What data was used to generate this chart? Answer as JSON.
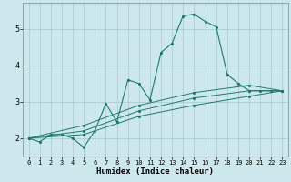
{
  "title": "",
  "xlabel": "Humidex (Indice chaleur)",
  "bg_color": "#cce8ec",
  "grid_color": "#aacdd4",
  "line_color": "#1a7a6e",
  "xlim": [
    -0.5,
    23.5
  ],
  "ylim": [
    1.5,
    5.7
  ],
  "yticks": [
    2,
    3,
    4,
    5
  ],
  "xticks": [
    0,
    1,
    2,
    3,
    4,
    5,
    6,
    7,
    8,
    9,
    10,
    11,
    12,
    13,
    14,
    15,
    16,
    17,
    18,
    19,
    20,
    21,
    22,
    23
  ],
  "series": [
    {
      "x": [
        0,
        1,
        2,
        3,
        4,
        5,
        6,
        7,
        8,
        9,
        10,
        11,
        12,
        13,
        14,
        15,
        16,
        17,
        18,
        19,
        20,
        21,
        22,
        23
      ],
      "y": [
        2.0,
        1.9,
        2.1,
        2.1,
        2.0,
        1.75,
        2.2,
        2.95,
        2.45,
        3.6,
        3.5,
        3.05,
        4.35,
        4.6,
        5.35,
        5.4,
        5.2,
        5.05,
        3.75,
        3.5,
        3.3,
        3.3,
        3.3,
        3.3
      ]
    },
    {
      "x": [
        0,
        23
      ],
      "y": [
        2.0,
        3.3
      ],
      "markers": [
        [
          0,
          2.0
        ],
        [
          5,
          2.1
        ],
        [
          10,
          2.6
        ],
        [
          15,
          2.9
        ],
        [
          20,
          3.15
        ],
        [
          23,
          3.3
        ]
      ]
    },
    {
      "x": [
        0,
        23
      ],
      "y": [
        2.0,
        3.3
      ],
      "markers": [
        [
          0,
          2.0
        ],
        [
          5,
          2.2
        ],
        [
          10,
          2.75
        ],
        [
          15,
          3.1
        ],
        [
          20,
          3.3
        ],
        [
          23,
          3.3
        ]
      ]
    },
    {
      "x": [
        0,
        23
      ],
      "y": [
        2.0,
        3.3
      ],
      "markers": [
        [
          0,
          2.0
        ],
        [
          5,
          2.35
        ],
        [
          10,
          2.9
        ],
        [
          15,
          3.25
        ],
        [
          20,
          3.45
        ],
        [
          23,
          3.3
        ]
      ]
    }
  ]
}
